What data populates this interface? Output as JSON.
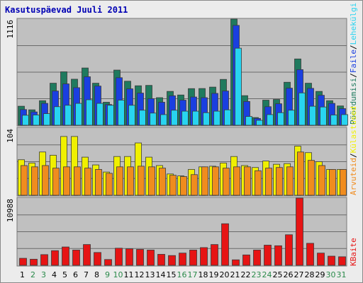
{
  "chart_data": {
    "type": "bar",
    "title": "Kasutuspäevad Juuli 2011",
    "categories": [
      "1",
      "2",
      "3",
      "4",
      "5",
      "6",
      "7",
      "8",
      "9",
      "10",
      "11",
      "12",
      "13",
      "14",
      "15",
      "16",
      "17",
      "18",
      "19",
      "20",
      "21",
      "22",
      "23",
      "24",
      "25",
      "26",
      "27",
      "28",
      "29",
      "30",
      "31"
    ],
    "weekend_days": [
      "2",
      "3",
      "9",
      "10",
      "16",
      "17",
      "23",
      "24",
      "30",
      "31"
    ],
    "panels": [
      {
        "name": "top",
        "ymax_label": "1116",
        "ymax": 1116,
        "series": [
          {
            "name": "Lehekülgi",
            "color": "#1f7a5e",
            "values": [
              200,
              162,
              258,
              442,
              562,
              484,
              602,
              442,
              242,
              580,
              463,
              415,
              419,
              290,
              356,
              318,
              385,
              386,
              401,
              482,
              1116,
              311,
              81,
              264,
              271,
              452,
              697,
              442,
              356,
              258,
              203
            ]
          },
          {
            "name": "Pöördumisi",
            "color": "#1a3fe0",
            "values": [
              165,
              140,
              230,
              360,
              435,
              395,
              510,
              412,
              218,
              500,
              383,
              338,
              280,
              242,
              310,
              264,
              297,
              290,
              335,
              360,
              1050,
              250,
              72,
              195,
              226,
              390,
              585,
              388,
              315,
              230,
              175
            ]
          },
          {
            "name": "Faile",
            "color": "#28d4f0",
            "values": [
              105,
              108,
              122,
              195,
              210,
              230,
              268,
              230,
              210,
              264,
              210,
              158,
              128,
              112,
              158,
              148,
              148,
              132,
              148,
              162,
              810,
              92,
              52,
              112,
              132,
              158,
              340,
              200,
              192,
              108,
              112
            ]
          }
        ]
      },
      {
        "name": "middle",
        "ymax_label": "104",
        "ymax": 104,
        "series": [
          {
            "name": "Külastused",
            "color": "#f0f000",
            "values": [
              55,
              50,
              67,
              62,
              91,
              91,
              59,
              47,
              36,
              60,
              60,
              81,
              59,
              46,
              33,
              30,
              40,
              44,
              45,
              50,
              60,
              46,
              43,
              53,
              48,
              49,
              76,
              66,
              52,
              40,
              40
            ]
          },
          {
            "name": "Arvuteid",
            "color": "#f08c1e",
            "values": [
              46,
              44,
              46,
              42,
              44,
              44,
              42,
              40,
              34,
              44,
              44,
              45,
              44,
              42,
              31,
              29,
              32,
              44,
              44,
              42,
              44,
              44,
              38,
              42,
              43,
              44,
              67,
              54,
              46,
              40,
              40
            ]
          }
        ]
      },
      {
        "name": "bottom",
        "ymax_label": "10988",
        "ymax": 10988,
        "series": [
          {
            "name": "KBaite",
            "color": "#e61414",
            "values": [
              1150,
              1000,
              1750,
              2400,
              3000,
              2500,
              3400,
              2100,
              950,
              2800,
              2700,
              2600,
              2500,
              1800,
              1600,
              2000,
              2500,
              2900,
              3400,
              6800,
              900,
              1700,
              2500,
              3300,
              3200,
              5000,
              10988,
              3600,
              2000,
              1500,
              1400
            ]
          }
        ]
      }
    ],
    "legend": {
      "placement": "right",
      "top_label": [
        "Pöördumisi",
        "/",
        "Faile",
        "/",
        "Lehekülgi"
      ],
      "middle_label": [
        "Arvuteid",
        "/",
        "Külastused"
      ],
      "bottom_label": [
        "KBaite"
      ],
      "top_colors": [
        "#1f7a5e",
        "#000000",
        "#1a3fe0",
        "#000000",
        "#28d4f0"
      ],
      "middle_colors": [
        "#f08c1e",
        "#000000",
        "#f0f000"
      ],
      "bottom_colors": [
        "#e61414"
      ]
    },
    "colors": {
      "plot_bg": "#c0c0c0",
      "grid": "#6b6b6b",
      "weekday_label": "#000000",
      "weekend_label": "#2a8a4a",
      "title": "#0000b4"
    }
  }
}
